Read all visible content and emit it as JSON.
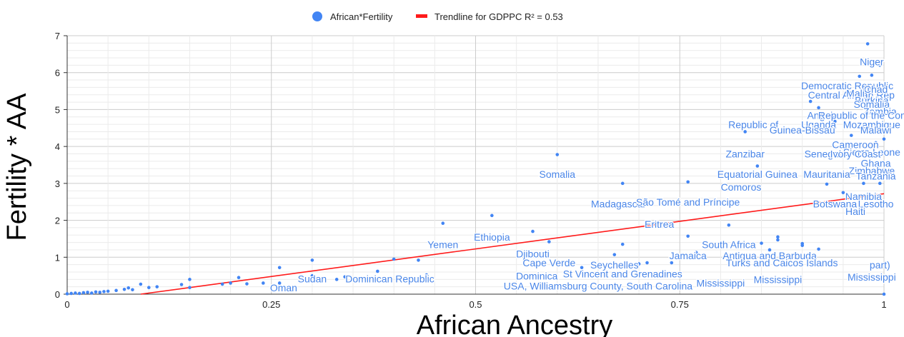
{
  "chart_data": {
    "type": "scatter",
    "xlabel": "African Ancestry",
    "ylabel": "Fertility * AA",
    "xlim": [
      0,
      1
    ],
    "ylim": [
      0,
      7
    ],
    "x_ticks": [
      "0",
      "0.25",
      "0.5",
      "0.75",
      "1"
    ],
    "y_ticks": [
      "0",
      "1",
      "2",
      "3",
      "4",
      "5",
      "6",
      "7"
    ],
    "grid": true,
    "legend_position": "top-center",
    "legend": [
      "African*Fertility",
      "Trendline for GDPPC R² = 0.53"
    ],
    "colors": {
      "points": "#4285f4",
      "trendline": "#ff1a1a",
      "grid": "#cccccc",
      "label": "#4a86e8"
    },
    "trendline": {
      "x": [
        0.09,
        1.0
      ],
      "y": [
        0,
        2.72
      ]
    },
    "series": [
      {
        "name": "African*Fertility",
        "points": [
          {
            "x": 0.0,
            "y": 0.01
          },
          {
            "x": 0.005,
            "y": 0.02
          },
          {
            "x": 0.01,
            "y": 0.03
          },
          {
            "x": 0.015,
            "y": 0.02
          },
          {
            "x": 0.02,
            "y": 0.04
          },
          {
            "x": 0.025,
            "y": 0.05
          },
          {
            "x": 0.03,
            "y": 0.03
          },
          {
            "x": 0.035,
            "y": 0.06
          },
          {
            "x": 0.04,
            "y": 0.05
          },
          {
            "x": 0.045,
            "y": 0.07
          },
          {
            "x": 0.05,
            "y": 0.08
          },
          {
            "x": 0.06,
            "y": 0.1
          },
          {
            "x": 0.07,
            "y": 0.13
          },
          {
            "x": 0.075,
            "y": 0.17
          },
          {
            "x": 0.08,
            "y": 0.12
          },
          {
            "x": 0.09,
            "y": 0.27
          },
          {
            "x": 0.1,
            "y": 0.18
          },
          {
            "x": 0.11,
            "y": 0.2
          },
          {
            "x": 0.14,
            "y": 0.26
          },
          {
            "x": 0.15,
            "y": 0.4
          },
          {
            "x": 0.15,
            "y": 0.18
          },
          {
            "x": 0.19,
            "y": 0.27
          },
          {
            "x": 0.2,
            "y": 0.3
          },
          {
            "x": 0.21,
            "y": 0.45
          },
          {
            "x": 0.22,
            "y": 0.28
          },
          {
            "x": 0.24,
            "y": 0.3
          },
          {
            "x": 0.26,
            "y": 0.72
          },
          {
            "x": 0.26,
            "y": 0.3
          },
          {
            "x": 0.3,
            "y": 0.92
          },
          {
            "x": 0.3,
            "y": 0.5
          },
          {
            "x": 0.33,
            "y": 0.4
          },
          {
            "x": 0.34,
            "y": 0.47
          },
          {
            "x": 0.38,
            "y": 0.62
          },
          {
            "x": 0.4,
            "y": 0.95
          },
          {
            "x": 0.43,
            "y": 0.92
          },
          {
            "x": 0.44,
            "y": 0.52
          },
          {
            "x": 0.46,
            "y": 1.92
          },
          {
            "x": 0.52,
            "y": 2.13
          },
          {
            "x": 0.57,
            "y": 1.7
          },
          {
            "x": 0.59,
            "y": 1.42
          },
          {
            "x": 0.6,
            "y": 3.78
          },
          {
            "x": 0.63,
            "y": 0.72
          },
          {
            "x": 0.65,
            "y": 0.75
          },
          {
            "x": 0.67,
            "y": 1.07
          },
          {
            "x": 0.68,
            "y": 1.35
          },
          {
            "x": 0.68,
            "y": 3.0
          },
          {
            "x": 0.7,
            "y": 0.82
          },
          {
            "x": 0.71,
            "y": 0.85
          },
          {
            "x": 0.74,
            "y": 0.85
          },
          {
            "x": 0.76,
            "y": 3.04
          },
          {
            "x": 0.76,
            "y": 1.57
          },
          {
            "x": 0.77,
            "y": 1.13
          },
          {
            "x": 0.81,
            "y": 1.87
          },
          {
            "x": 0.82,
            "y": 1.1
          },
          {
            "x": 0.83,
            "y": 4.4
          },
          {
            "x": 0.845,
            "y": 3.47
          },
          {
            "x": 0.85,
            "y": 1.38
          },
          {
            "x": 0.86,
            "y": 1.2
          },
          {
            "x": 0.87,
            "y": 1.47
          },
          {
            "x": 0.87,
            "y": 1.55
          },
          {
            "x": 0.9,
            "y": 1.37
          },
          {
            "x": 0.9,
            "y": 1.32
          },
          {
            "x": 0.91,
            "y": 5.22
          },
          {
            "x": 0.92,
            "y": 5.05
          },
          {
            "x": 0.92,
            "y": 1.22
          },
          {
            "x": 0.93,
            "y": 2.98
          },
          {
            "x": 0.94,
            "y": 4.68
          },
          {
            "x": 0.95,
            "y": 2.75
          },
          {
            "x": 0.96,
            "y": 4.3
          },
          {
            "x": 0.97,
            "y": 5.9
          },
          {
            "x": 0.975,
            "y": 3.0
          },
          {
            "x": 0.98,
            "y": 6.78
          },
          {
            "x": 0.985,
            "y": 5.93
          },
          {
            "x": 0.99,
            "y": 4.1
          },
          {
            "x": 0.995,
            "y": 6.2
          },
          {
            "x": 0.995,
            "y": 3.0
          },
          {
            "x": 1.0,
            "y": 4.2
          },
          {
            "x": 1.0,
            "y": 0.0
          }
        ]
      }
    ],
    "annotations": [
      {
        "text": "Niger",
        "x": 0.985,
        "y": 6.2
      },
      {
        "text": "Democratic Republic",
        "x": 0.955,
        "y": 5.55
      },
      {
        "text": "Central African Rep",
        "x": 0.96,
        "y": 5.3
      },
      {
        "text": "Chad",
        "x": 0.99,
        "y": 5.45
      },
      {
        "text": "Mali",
        "x": 0.965,
        "y": 5.35
      },
      {
        "text": "Burkina",
        "x": 0.985,
        "y": 5.15
      },
      {
        "text": "Somalia",
        "x": 0.985,
        "y": 5.05
      },
      {
        "text": "Zambia",
        "x": 0.995,
        "y": 4.85
      },
      {
        "text": "Angola",
        "x": 0.925,
        "y": 4.75
      },
      {
        "text": "Republic of the Congo",
        "x": 0.98,
        "y": 4.75
      },
      {
        "text": "Republic of",
        "x": 0.84,
        "y": 4.5
      },
      {
        "text": "Uganda",
        "x": 0.92,
        "y": 4.5
      },
      {
        "text": "Mozambique",
        "x": 0.985,
        "y": 4.5
      },
      {
        "text": "Guinea-Bissau",
        "x": 0.9,
        "y": 4.35
      },
      {
        "text": "Malawi",
        "x": 0.99,
        "y": 4.35
      },
      {
        "text": "Cameroon",
        "x": 0.965,
        "y": 3.95
      },
      {
        "text": "Sierra Leone",
        "x": 0.985,
        "y": 3.75
      },
      {
        "text": "Zanzibar",
        "x": 0.83,
        "y": 3.7
      },
      {
        "text": "Senegal",
        "x": 0.925,
        "y": 3.7
      },
      {
        "text": "Ivory Coast",
        "x": 0.965,
        "y": 3.7
      },
      {
        "text": "Ghana",
        "x": 0.99,
        "y": 3.45
      },
      {
        "text": "Zimbabwe",
        "x": 0.985,
        "y": 3.25
      },
      {
        "text": "Equatorial Guinea",
        "x": 0.845,
        "y": 3.15
      },
      {
        "text": "Mauritania",
        "x": 0.93,
        "y": 3.15
      },
      {
        "text": "Tanzania",
        "x": 0.99,
        "y": 3.1
      },
      {
        "text": "Comoros",
        "x": 0.825,
        "y": 2.8
      },
      {
        "text": "Namibia",
        "x": 0.975,
        "y": 2.55
      },
      {
        "text": "Botswana",
        "x": 0.94,
        "y": 2.35
      },
      {
        "text": "Lesotho",
        "x": 0.99,
        "y": 2.35
      },
      {
        "text": "Haiti",
        "x": 0.965,
        "y": 2.15
      },
      {
        "text": "Madagascar",
        "x": 0.675,
        "y": 2.35
      },
      {
        "text": "São Tomé and Príncipe",
        "x": 0.76,
        "y": 2.4
      },
      {
        "text": "Eritrea",
        "x": 0.725,
        "y": 1.8
      },
      {
        "text": "Somalia",
        "x": 0.6,
        "y": 3.15
      },
      {
        "text": "Ethiopia",
        "x": 0.52,
        "y": 1.45
      },
      {
        "text": "Yemen",
        "x": 0.46,
        "y": 1.25
      },
      {
        "text": "Djibouti",
        "x": 0.57,
        "y": 1.0
      },
      {
        "text": "South Africa",
        "x": 0.81,
        "y": 1.25
      },
      {
        "text": "Jamaica",
        "x": 0.76,
        "y": 0.95
      },
      {
        "text": "Antigua and Barbuda",
        "x": 0.86,
        "y": 0.95
      },
      {
        "text": "Cape Verde",
        "x": 0.59,
        "y": 0.75
      },
      {
        "text": "Seychelles",
        "x": 0.67,
        "y": 0.7
      },
      {
        "text": "Turks and Caicos Islands",
        "x": 0.875,
        "y": 0.75
      },
      {
        "text": "part)",
        "x": 0.995,
        "y": 0.7
      },
      {
        "text": "St Vincent and Grenadines",
        "x": 0.68,
        "y": 0.45
      },
      {
        "text": "Dominica",
        "x": 0.575,
        "y": 0.4
      },
      {
        "text": "Mississippi",
        "x": 0.8,
        "y": 0.2
      },
      {
        "text": "Mississippi",
        "x": 0.87,
        "y": 0.3
      },
      {
        "text": "Mississippi",
        "x": 0.985,
        "y": 0.37
      },
      {
        "text": "USA, Williamsburg County, South Carolina",
        "x": 0.65,
        "y": 0.13
      },
      {
        "text": "Dominican Republic",
        "x": 0.395,
        "y": 0.32
      },
      {
        "text": "Sudan",
        "x": 0.3,
        "y": 0.32
      },
      {
        "text": "Oman",
        "x": 0.265,
        "y": 0.08
      }
    ]
  }
}
